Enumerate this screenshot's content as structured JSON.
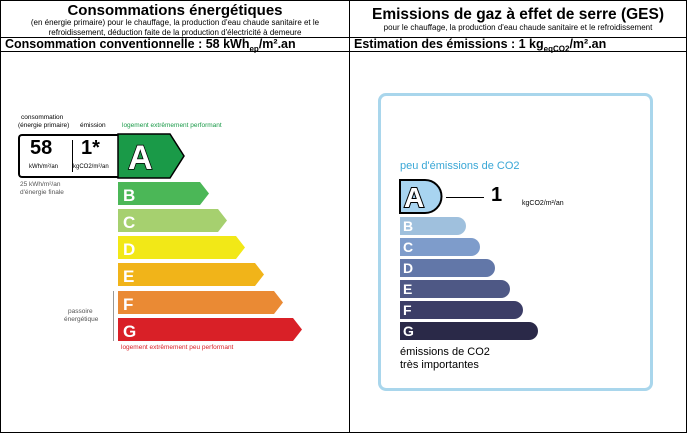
{
  "energy": {
    "title": "Consommations énergétiques",
    "subtitle_line1": "(en énergie primaire) pour le chauffage, la production d'eau chaude sanitaire et le",
    "subtitle_line2": "refroidissement, déduction faite de la production d'électricité à demeure",
    "summary_prefix": "Consommation conventionnelle : 58 kWh",
    "summary_sub": "ep",
    "summary_suffix": "/m².an",
    "col_consumption": "consommation",
    "col_consumption2": "(énergie primaire)",
    "col_emission": "émission",
    "value_consumption": "58",
    "unit_consumption": "kWh/m²/an",
    "value_emission": "1*",
    "unit_emission": "kgCO2/m²/an",
    "final_energy_1": "25 kWh/m²/an",
    "final_energy_2": "d'énergie finale",
    "top_label": "logement extrêmement performant",
    "bottom_label": "logement extrêmement peu performant",
    "passoire_1": "passoire",
    "passoire_2": "énergétique",
    "current_class": "A",
    "classes": [
      {
        "letter": "A",
        "color": "#1a9a48"
      },
      {
        "letter": "B",
        "color": "#4bb757"
      },
      {
        "letter": "C",
        "color": "#a6d06f"
      },
      {
        "letter": "D",
        "color": "#f2e817"
      },
      {
        "letter": "E",
        "color": "#f1b419"
      },
      {
        "letter": "F",
        "color": "#ea8a34"
      },
      {
        "letter": "G",
        "color": "#d92027"
      }
    ]
  },
  "ges": {
    "title": "Emissions de gaz à effet de serre (GES)",
    "subtitle": "pour le chauffage, la production d'eau chaude sanitaire et le refroidissement",
    "summary_prefix": "Estimation des émissions : 1 kg",
    "summary_sub": "eqCO2",
    "summary_suffix": "/m².an",
    "top_label": "peu d'émissions de CO2",
    "value": "1",
    "unit": "kgCO2/m²/an",
    "bottom_label_1": "émissions de CO2",
    "bottom_label_2": "très importantes",
    "current_class": "A",
    "border_color": "#a9d6ec",
    "classes": [
      {
        "letter": "A",
        "color": "#a8d4f0"
      },
      {
        "letter": "B",
        "color": "#9fc0dd"
      },
      {
        "letter": "C",
        "color": "#7e9ccb"
      },
      {
        "letter": "D",
        "color": "#6277a8"
      },
      {
        "letter": "E",
        "color": "#4e5885"
      },
      {
        "letter": "F",
        "color": "#3b3d66"
      },
      {
        "letter": "G",
        "color": "#2a2948"
      }
    ]
  }
}
